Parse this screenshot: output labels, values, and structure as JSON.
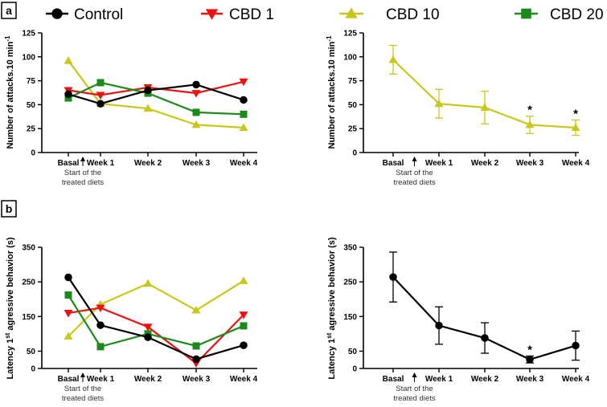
{
  "panel_labels": [
    "a",
    "b"
  ],
  "legend": [
    {
      "name": "Control",
      "color": "#000000",
      "marker": "circle"
    },
    {
      "name": "CBD 1",
      "color": "#ee1111",
      "marker": "triangle-down"
    },
    {
      "name": "CBD 10",
      "color": "#c8c81a",
      "marker": "triangle-up"
    },
    {
      "name": "CBD 20",
      "color": "#1a8a1a",
      "marker": "square"
    }
  ],
  "annotation": {
    "arrow_label_line1": "Start of the",
    "arrow_label_line2": "treated diets"
  },
  "chart_data": [
    {
      "type": "line",
      "panel": "a",
      "ylabel": "Number of attacks.10 min",
      "ylabel_sup": "-1",
      "categories": [
        "Basal",
        "Week 1",
        "Week 2",
        "Week 3",
        "Week 4"
      ],
      "ylim": [
        0,
        125
      ],
      "yticks": [
        0,
        25,
        50,
        75,
        100,
        125
      ],
      "series": [
        {
          "name": "CBD 10",
          "color": "#c8c81a",
          "marker": "triangle-up",
          "values": [
            96,
            51,
            46,
            29,
            26
          ]
        },
        {
          "name": "CBD 1",
          "color": "#ee1111",
          "marker": "triangle-down",
          "values": [
            65,
            60,
            68,
            62,
            74
          ]
        },
        {
          "name": "CBD 20",
          "color": "#1a8a1a",
          "marker": "square",
          "values": [
            57,
            73,
            62,
            42,
            40
          ]
        },
        {
          "name": "Control",
          "color": "#000000",
          "marker": "circle",
          "values": [
            61,
            51,
            65,
            71,
            55
          ]
        }
      ]
    },
    {
      "type": "line",
      "panel": "a-right",
      "ylabel": "Number of attacks.10 min",
      "ylabel_sup": "-1",
      "categories": [
        "Basal",
        "Week 1",
        "Week 2",
        "Week 3",
        "Week 4"
      ],
      "ylim": [
        0,
        125
      ],
      "yticks": [
        0,
        25,
        50,
        75,
        100,
        125
      ],
      "series": [
        {
          "name": "CBD 10",
          "color": "#c8c81a",
          "marker": "triangle-up",
          "values": [
            97,
            51,
            47,
            29,
            26
          ],
          "errors": [
            15,
            15,
            17,
            9,
            8
          ]
        }
      ],
      "significance": [
        "",
        "",
        "",
        "*",
        "*"
      ]
    },
    {
      "type": "line",
      "panel": "b",
      "ylabel": "Latency 1",
      "ylabel_sup": "st",
      "ylabel_rest": " agressive behavior  (s)",
      "categories": [
        "Basal",
        "Week 1",
        "Week 2",
        "Week 3",
        "Week 4"
      ],
      "ylim": [
        0,
        350
      ],
      "yticks": [
        0,
        50,
        150,
        250,
        350
      ],
      "series": [
        {
          "name": "CBD 10",
          "color": "#c8c81a",
          "marker": "triangle-up",
          "values": [
            93,
            185,
            245,
            168,
            253
          ]
        },
        {
          "name": "CBD 1",
          "color": "#ee1111",
          "marker": "triangle-down",
          "values": [
            160,
            175,
            120,
            15,
            155
          ]
        },
        {
          "name": "CBD 20",
          "color": "#1a8a1a",
          "marker": "square",
          "values": [
            212,
            63,
            100,
            65,
            123
          ]
        },
        {
          "name": "Control",
          "color": "#000000",
          "marker": "circle",
          "values": [
            263,
            125,
            90,
            27,
            67
          ]
        }
      ]
    },
    {
      "type": "line",
      "panel": "b-right",
      "ylabel": "Latency 1",
      "ylabel_sup": "st",
      "ylabel_rest": " agressive behavior  (s)",
      "categories": [
        "Basal",
        "Week 1",
        "Week 2",
        "Week 3",
        "Week 4"
      ],
      "ylim": [
        0,
        350
      ],
      "yticks": [
        0,
        50,
        150,
        250,
        350
      ],
      "series": [
        {
          "name": "Control",
          "color": "#000000",
          "marker": "circle",
          "values": [
            264,
            124,
            88,
            26,
            66
          ],
          "errors": [
            72,
            54,
            44,
            10,
            42
          ]
        }
      ],
      "significance": [
        "",
        "",
        "",
        "*",
        ""
      ]
    }
  ]
}
